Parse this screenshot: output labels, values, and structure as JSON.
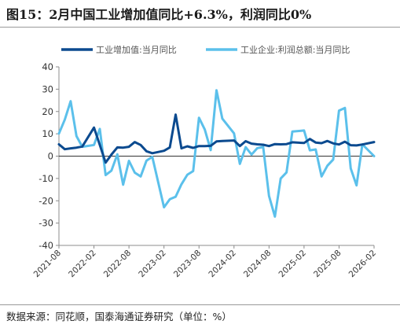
{
  "title": "图15：2月中国工业增加值同比+6.3%，利润同比0%",
  "source": "数据来源：同花顺，国泰海通证券研究（单位：%）",
  "colors": {
    "series1": "#0b4a8f",
    "series2": "#5bc0eb",
    "axis": "#8c8c8c"
  },
  "chart_data": {
    "type": "line",
    "ylim": [
      -40,
      40
    ],
    "yticks": [
      -40,
      -30,
      -20,
      -10,
      0,
      10,
      20,
      30,
      40
    ],
    "x_tick_labels": [
      "2021-08",
      "2022-02",
      "2022-08",
      "2023-02",
      "2023-08",
      "2024-02",
      "2024-08",
      "2025-02",
      "2025-08",
      "2026-02"
    ],
    "grid": false,
    "legend": "top",
    "x_start": "2021-08",
    "series": [
      {
        "name": "工业增加值:当月同比",
        "points": [
          [
            "2021-08",
            5.3
          ],
          [
            "2021-09",
            3.1
          ],
          [
            "2021-10",
            3.5
          ],
          [
            "2021-11",
            3.8
          ],
          [
            "2021-12",
            4.3
          ],
          [
            "2022-02",
            12.8
          ],
          [
            "2022-03",
            5.0
          ],
          [
            "2022-04",
            -2.9
          ],
          [
            "2022-05",
            0.7
          ],
          [
            "2022-06",
            3.9
          ],
          [
            "2022-07",
            3.8
          ],
          [
            "2022-08",
            4.2
          ],
          [
            "2022-09",
            6.3
          ],
          [
            "2022-10",
            5.0
          ],
          [
            "2022-11",
            2.2
          ],
          [
            "2022-12",
            1.3
          ],
          [
            "2023-02",
            2.4
          ],
          [
            "2023-03",
            3.9
          ],
          [
            "2023-04",
            18.6
          ],
          [
            "2023-05",
            3.5
          ],
          [
            "2023-06",
            4.4
          ],
          [
            "2023-07",
            3.7
          ],
          [
            "2023-08",
            4.5
          ],
          [
            "2023-09",
            4.5
          ],
          [
            "2023-10",
            4.6
          ],
          [
            "2023-11",
            6.6
          ],
          [
            "2023-12",
            6.8
          ],
          [
            "2024-02",
            7.0
          ],
          [
            "2024-03",
            4.5
          ],
          [
            "2024-04",
            6.7
          ],
          [
            "2024-05",
            5.6
          ],
          [
            "2024-06",
            5.3
          ],
          [
            "2024-07",
            5.1
          ],
          [
            "2024-08",
            4.5
          ],
          [
            "2024-09",
            5.4
          ],
          [
            "2024-10",
            5.3
          ],
          [
            "2024-11",
            5.4
          ],
          [
            "2024-12",
            6.2
          ],
          [
            "2025-02",
            5.9
          ],
          [
            "2025-03",
            7.7
          ],
          [
            "2025-04",
            6.1
          ],
          [
            "2025-05",
            5.8
          ],
          [
            "2025-06",
            6.8
          ],
          [
            "2025-07",
            5.7
          ],
          [
            "2025-08",
            5.2
          ],
          [
            "2025-09",
            6.5
          ],
          [
            "2025-10",
            4.9
          ],
          [
            "2025-11",
            4.8
          ],
          [
            "2025-12",
            5.2
          ],
          [
            "2026-02",
            6.3
          ]
        ]
      },
      {
        "name": "工业企业:利润总额:当月同比",
        "points": [
          [
            "2021-08",
            10.1
          ],
          [
            "2021-09",
            16.3
          ],
          [
            "2021-10",
            24.6
          ],
          [
            "2021-11",
            9.0
          ],
          [
            "2021-12",
            4.2
          ],
          [
            "2022-02",
            5.0
          ],
          [
            "2022-03",
            12.2
          ],
          [
            "2022-04",
            -8.5
          ],
          [
            "2022-05",
            -6.5
          ],
          [
            "2022-06",
            0.8
          ],
          [
            "2022-07",
            -12.8
          ],
          [
            "2022-08",
            -2.1
          ],
          [
            "2022-09",
            -7.4
          ],
          [
            "2022-10",
            -9.1
          ],
          [
            "2022-11",
            -2.0
          ],
          [
            "2022-12",
            -0.3
          ],
          [
            "2023-02",
            -22.9
          ],
          [
            "2023-03",
            -19.3
          ],
          [
            "2023-04",
            -18.2
          ],
          [
            "2023-05",
            -12.6
          ],
          [
            "2023-06",
            -8.3
          ],
          [
            "2023-07",
            -6.7
          ],
          [
            "2023-08",
            17.2
          ],
          [
            "2023-09",
            11.9
          ],
          [
            "2023-10",
            2.7
          ],
          [
            "2023-11",
            29.5
          ],
          [
            "2023-12",
            16.8
          ],
          [
            "2024-02",
            10.2
          ],
          [
            "2024-03",
            -3.5
          ],
          [
            "2024-04",
            4.0
          ],
          [
            "2024-05",
            0.7
          ],
          [
            "2024-06",
            3.6
          ],
          [
            "2024-07",
            4.1
          ],
          [
            "2024-08",
            -17.8
          ],
          [
            "2024-09",
            -27.1
          ],
          [
            "2024-10",
            -10.0
          ],
          [
            "2024-11",
            -7.3
          ],
          [
            "2024-12",
            11.0
          ],
          [
            "2025-02",
            11.5
          ],
          [
            "2025-03",
            2.6
          ],
          [
            "2025-04",
            3.0
          ],
          [
            "2025-05",
            -9.1
          ],
          [
            "2025-06",
            -4.3
          ],
          [
            "2025-07",
            -1.5
          ],
          [
            "2025-08",
            20.4
          ],
          [
            "2025-09",
            21.6
          ],
          [
            "2025-10",
            -5.5
          ],
          [
            "2025-11",
            -13.1
          ],
          [
            "2025-12",
            5.3
          ],
          [
            "2026-02",
            0.0
          ]
        ]
      }
    ]
  }
}
